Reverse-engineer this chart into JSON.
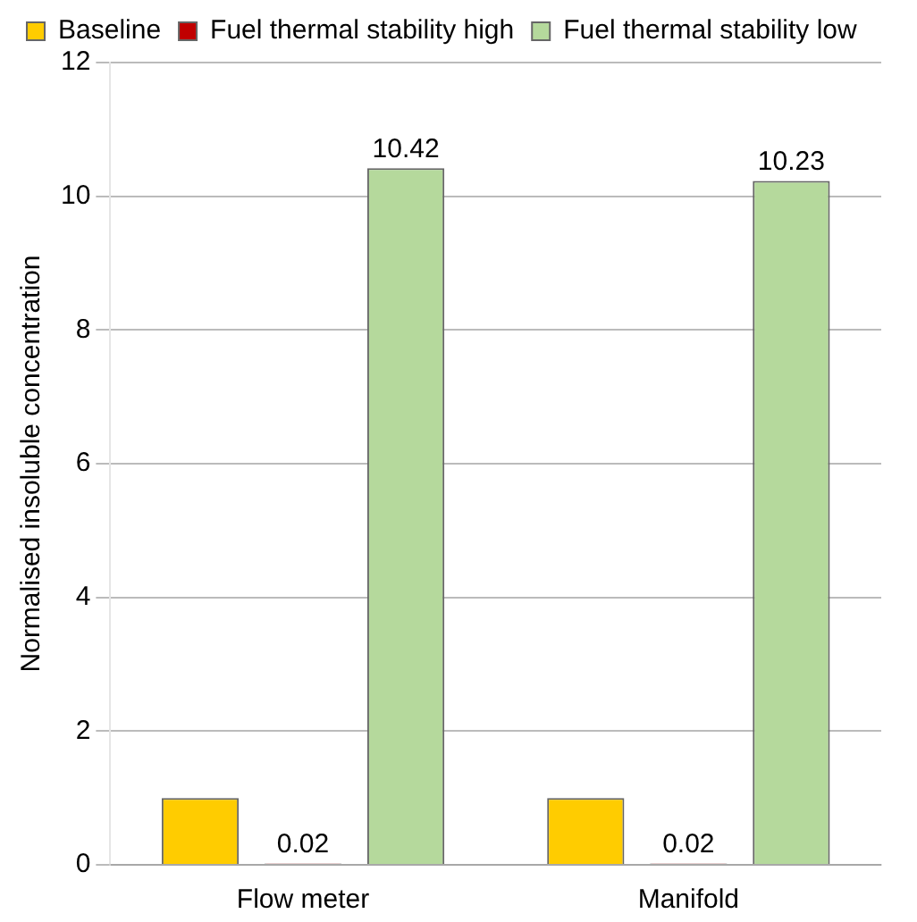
{
  "chart_data": {
    "type": "bar",
    "ylabel": "Normalised insoluble concentration",
    "categories": [
      "Flow meter",
      "Manifold"
    ],
    "series": [
      {
        "name": "Baseline",
        "color": "#ffcc00",
        "values": [
          1,
          1
        ]
      },
      {
        "name": "Fuel thermal stability high",
        "color": "#c00000",
        "values": [
          0.02,
          0.02
        ],
        "value_labels": [
          "0.02",
          "0.02"
        ]
      },
      {
        "name": "Fuel thermal stability low",
        "color": "#b5d99c",
        "values": [
          10.42,
          10.23
        ],
        "value_labels": [
          "10.42",
          "10.23"
        ]
      }
    ],
    "ylim": [
      0,
      12
    ],
    "yticks": [
      0,
      2,
      4,
      6,
      8,
      10,
      12
    ],
    "grid": "y",
    "legend": "top left"
  }
}
